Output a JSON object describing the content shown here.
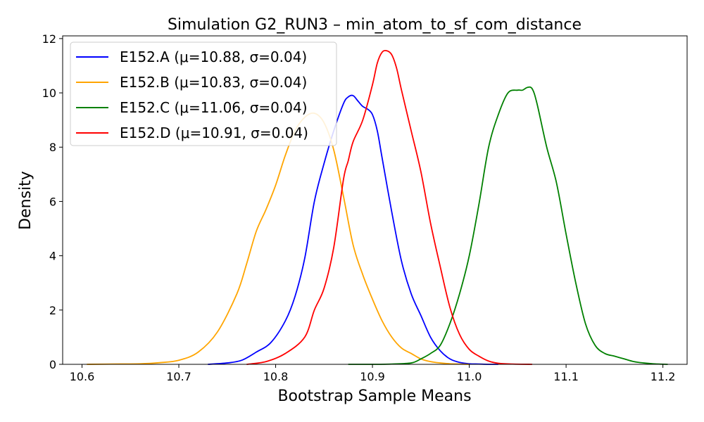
{
  "chart_data": {
    "type": "line",
    "title": "Simulation G2_RUN3 – min_atom_to_sf_com_distance",
    "xlabel": "Bootstrap Sample Means",
    "ylabel": "Density",
    "xlim": [
      10.58,
      11.225
    ],
    "ylim": [
      0,
      12.1
    ],
    "xticks": [
      10.6,
      10.7,
      10.8,
      10.9,
      11.0,
      11.1,
      11.2
    ],
    "xtick_labels": [
      "10.6",
      "10.7",
      "10.8",
      "10.9",
      "11.0",
      "11.1",
      "11.2"
    ],
    "yticks": [
      0,
      2,
      4,
      6,
      8,
      10,
      12
    ],
    "ytick_labels": [
      "0",
      "2",
      "4",
      "6",
      "8",
      "10",
      "12"
    ],
    "legend_position": "top-left",
    "series": [
      {
        "name": "E152.A (μ=10.88, σ=0.04)",
        "color": "#0000ff",
        "x": [
          10.73,
          10.75,
          10.765,
          10.78,
          10.795,
          10.81,
          10.82,
          10.83,
          10.84,
          10.85,
          10.86,
          10.87,
          10.875,
          10.88,
          10.885,
          10.89,
          10.895,
          10.9,
          10.905,
          10.91,
          10.92,
          10.93,
          10.94,
          10.95,
          10.96,
          10.97,
          10.98,
          10.99,
          11.0,
          11.01,
          11.02,
          11.03
        ],
        "y": [
          0.0,
          0.05,
          0.15,
          0.45,
          0.8,
          1.6,
          2.5,
          3.9,
          6.0,
          7.4,
          8.6,
          9.6,
          9.85,
          9.9,
          9.7,
          9.5,
          9.4,
          9.2,
          8.6,
          7.6,
          5.6,
          3.8,
          2.6,
          1.8,
          1.0,
          0.5,
          0.2,
          0.07,
          0.02,
          0.01,
          0.0,
          0.0
        ]
      },
      {
        "name": "E152.B (μ=10.83, σ=0.04)",
        "color": "#ffa500",
        "x": [
          10.605,
          10.63,
          10.66,
          10.68,
          10.7,
          10.72,
          10.74,
          10.76,
          10.77,
          10.78,
          10.79,
          10.8,
          10.81,
          10.82,
          10.83,
          10.84,
          10.85,
          10.86,
          10.87,
          10.88,
          10.89,
          10.9,
          10.91,
          10.92,
          10.93,
          10.94,
          10.95,
          10.96,
          10.97,
          10.98,
          10.99,
          11.0
        ],
        "y": [
          0.0,
          0.01,
          0.02,
          0.06,
          0.15,
          0.45,
          1.2,
          2.6,
          3.7,
          4.9,
          5.7,
          6.6,
          7.7,
          8.6,
          9.1,
          9.25,
          8.9,
          7.9,
          6.2,
          4.4,
          3.3,
          2.4,
          1.6,
          1.0,
          0.6,
          0.4,
          0.2,
          0.1,
          0.05,
          0.02,
          0.01,
          0.0
        ]
      },
      {
        "name": "E152.C (μ=11.06, σ=0.04)",
        "color": "#008000",
        "x": [
          10.875,
          10.9,
          10.92,
          10.94,
          10.95,
          10.96,
          10.97,
          10.98,
          10.99,
          11.0,
          11.01,
          11.02,
          11.03,
          11.04,
          11.05,
          11.055,
          11.06,
          11.065,
          11.07,
          11.08,
          11.09,
          11.1,
          11.11,
          11.12,
          11.13,
          11.14,
          11.15,
          11.16,
          11.17,
          11.18,
          11.19,
          11.205
        ],
        "y": [
          0.0,
          0.0,
          0.01,
          0.05,
          0.2,
          0.4,
          0.7,
          1.5,
          2.6,
          4.0,
          5.9,
          8.0,
          9.2,
          10.0,
          10.1,
          10.1,
          10.2,
          10.15,
          9.6,
          8.0,
          6.7,
          4.8,
          3.0,
          1.5,
          0.7,
          0.4,
          0.3,
          0.2,
          0.1,
          0.05,
          0.02,
          0.0
        ]
      },
      {
        "name": "E152.D (μ=10.91, σ=0.04)",
        "color": "#ff0000",
        "x": [
          10.77,
          10.79,
          10.81,
          10.83,
          10.84,
          10.85,
          10.86,
          10.87,
          10.875,
          10.88,
          10.89,
          10.9,
          10.905,
          10.91,
          10.915,
          10.92,
          10.925,
          10.93,
          10.94,
          10.95,
          10.96,
          10.97,
          10.98,
          10.99,
          11.0,
          11.01,
          11.02,
          11.03,
          11.045,
          11.065
        ],
        "y": [
          0.0,
          0.1,
          0.4,
          1.0,
          2.0,
          2.8,
          4.3,
          6.8,
          7.5,
          8.2,
          9.0,
          10.3,
          11.1,
          11.5,
          11.55,
          11.4,
          10.9,
          10.1,
          8.6,
          7.1,
          5.2,
          3.6,
          2.1,
          1.1,
          0.55,
          0.3,
          0.12,
          0.04,
          0.01,
          0.0
        ]
      }
    ]
  }
}
